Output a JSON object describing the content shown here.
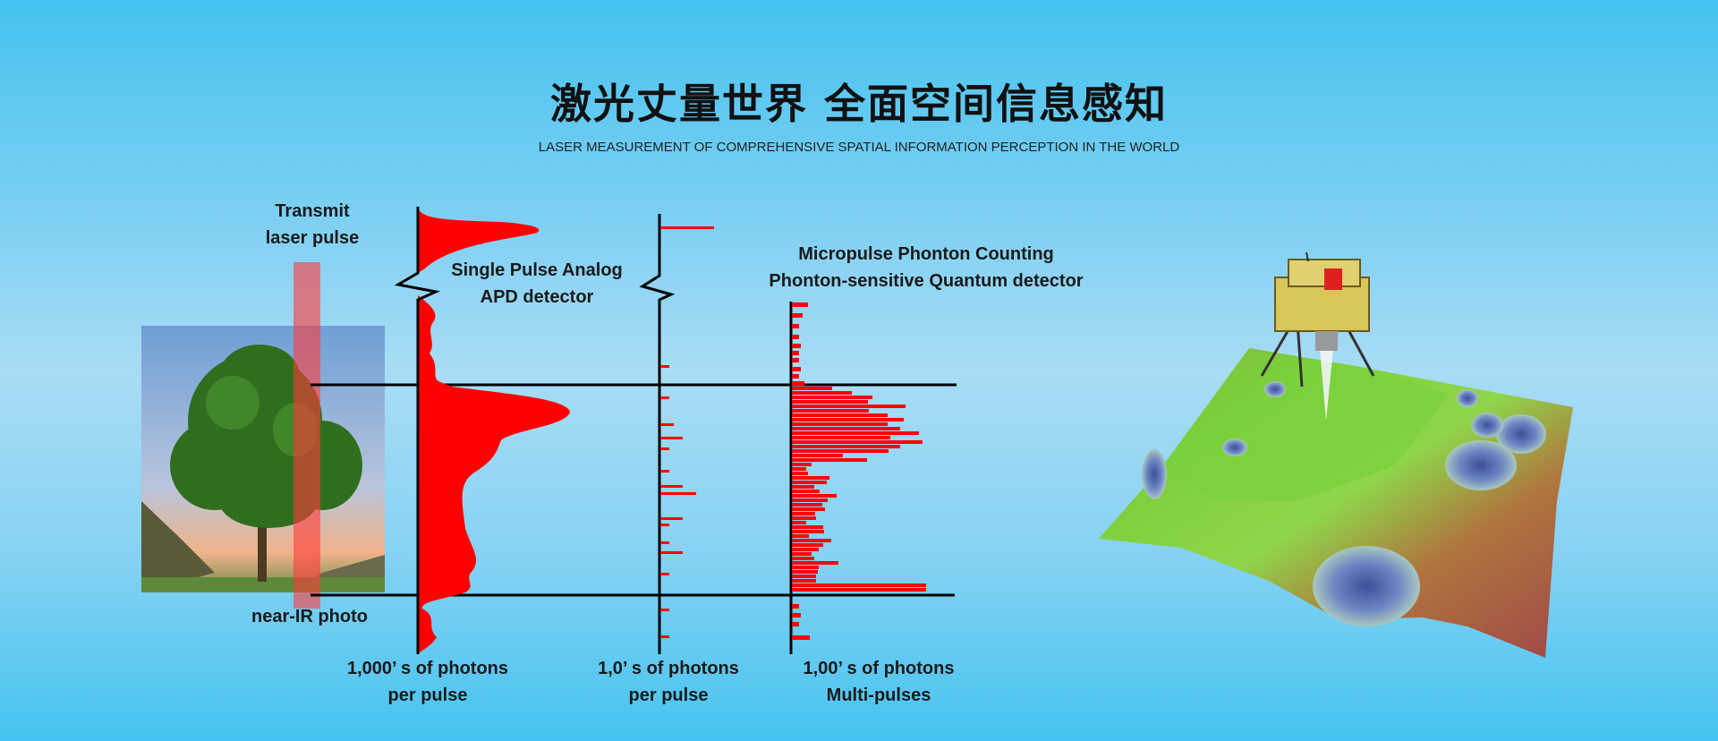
{
  "header": {
    "title": "激光丈量世界 全面空间信息感知",
    "subtitle": "LASER MEASUREMENT OF COMPREHENSIVE SPATIAL INFORMATION PERCEPTION IN THE WORLD"
  },
  "diagram": {
    "transmit_label": [
      "Transmit",
      "laser pulse"
    ],
    "photo_label": "near-IR photo",
    "apd_label": [
      "Single Pulse Analog",
      "APD detector"
    ],
    "micropulse_label": [
      "Micropulse Phonton Counting",
      "Phonton-sensitive Quantum detector"
    ],
    "axis_labels": [
      [
        "1,000’ s of photons",
        "per pulse"
      ],
      [
        "1,0’ s of photons",
        "per pulse"
      ],
      [
        "1,00’ s of photons",
        "Multi-pulses"
      ]
    ]
  },
  "colors": {
    "signal": "#ff0000",
    "beam": "#ff5a5a",
    "axis": "#000000",
    "background": "#44c2ef"
  }
}
